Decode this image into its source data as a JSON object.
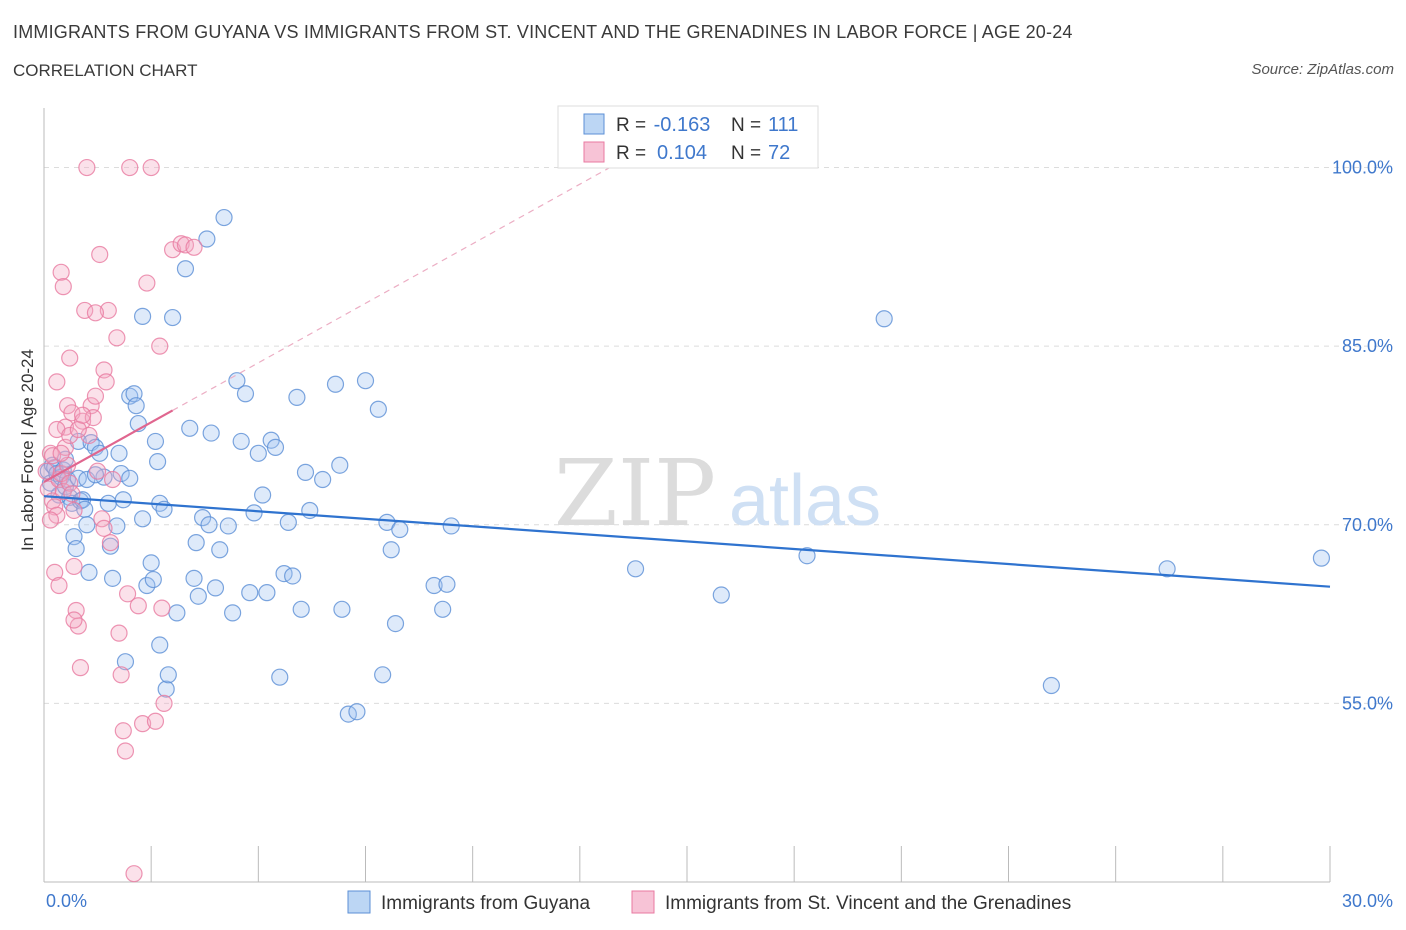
{
  "header": {
    "title": "IMMIGRANTS FROM GUYANA VS IMMIGRANTS FROM ST. VINCENT AND THE GRENADINES IN LABOR FORCE | AGE 20-24",
    "subtitle": "CORRELATION CHART",
    "source": "Source: ZipAtlas.com"
  },
  "watermark": {
    "zip": "ZIP",
    "atlas": "atlas"
  },
  "stats_box": [
    {
      "r_label": "R =",
      "r_value": "-0.163",
      "n_label": "N =",
      "n_value": "111",
      "color": "#5b8fd6"
    },
    {
      "r_label": "R =",
      "r_value": "0.104",
      "n_label": "N =",
      "n_value": "72",
      "color": "#e87aa0"
    }
  ],
  "chart_data": {
    "type": "scatter",
    "ylabel": "In Labor Force | Age 20-24",
    "xlim": [
      0,
      30
    ],
    "ylim": [
      40,
      105
    ],
    "x_tick_labels": [
      {
        "value": 0,
        "label": "0.0%"
      },
      {
        "value": 30,
        "label": "30.0%"
      }
    ],
    "y_tick_labels": [
      {
        "value": 100,
        "label": "100.0%"
      },
      {
        "value": 85,
        "label": "85.0%"
      },
      {
        "value": 70,
        "label": "70.0%"
      },
      {
        "value": 55,
        "label": "55.0%"
      }
    ],
    "grid": true,
    "legend_position": "bottom",
    "series": [
      {
        "name": "Immigrants from Guyana",
        "color": "#5b8fd6",
        "fill": "rgba(160,196,240,0.35)",
        "trend": {
          "x": [
            0,
            30
          ],
          "y": [
            72.4,
            64.8
          ],
          "style": "solid"
        },
        "points": [
          [
            0.1,
            74.5
          ],
          [
            0.15,
            73.5
          ],
          [
            0.2,
            75.0
          ],
          [
            0.25,
            74.8
          ],
          [
            0.3,
            74.3
          ],
          [
            0.35,
            72.5
          ],
          [
            0.4,
            74.0
          ],
          [
            0.45,
            74.6
          ],
          [
            0.5,
            73.2
          ],
          [
            0.55,
            73.8
          ],
          [
            0.6,
            72.3
          ],
          [
            0.65,
            71.8
          ],
          [
            0.7,
            69.0
          ],
          [
            0.75,
            68.0
          ],
          [
            0.8,
            77.0
          ],
          [
            0.85,
            72.0
          ],
          [
            0.9,
            72.1
          ],
          [
            0.95,
            71.3
          ],
          [
            1.0,
            70.0
          ],
          [
            1.05,
            66.0
          ],
          [
            1.1,
            76.9
          ],
          [
            1.2,
            76.5
          ],
          [
            1.3,
            76.0
          ],
          [
            1.4,
            74.0
          ],
          [
            1.5,
            71.8
          ],
          [
            1.55,
            68.2
          ],
          [
            1.6,
            65.5
          ],
          [
            1.7,
            69.9
          ],
          [
            1.75,
            76.0
          ],
          [
            1.8,
            74.3
          ],
          [
            1.85,
            72.1
          ],
          [
            1.9,
            58.5
          ],
          [
            2.0,
            80.8
          ],
          [
            2.1,
            81.0
          ],
          [
            2.15,
            80.0
          ],
          [
            2.2,
            78.5
          ],
          [
            2.3,
            87.5
          ],
          [
            2.4,
            64.9
          ],
          [
            2.5,
            66.8
          ],
          [
            2.55,
            65.4
          ],
          [
            2.6,
            77.0
          ],
          [
            2.65,
            75.3
          ],
          [
            2.7,
            71.8
          ],
          [
            2.8,
            71.3
          ],
          [
            2.85,
            56.2
          ],
          [
            2.9,
            57.4
          ],
          [
            3.0,
            87.4
          ],
          [
            3.1,
            62.6
          ],
          [
            3.3,
            91.5
          ],
          [
            3.4,
            78.1
          ],
          [
            3.5,
            65.5
          ],
          [
            3.55,
            68.5
          ],
          [
            3.6,
            64.0
          ],
          [
            3.7,
            70.6
          ],
          [
            3.8,
            94.0
          ],
          [
            3.85,
            70.0
          ],
          [
            3.9,
            77.7
          ],
          [
            4.0,
            64.7
          ],
          [
            4.1,
            67.9
          ],
          [
            4.2,
            95.8
          ],
          [
            4.3,
            69.9
          ],
          [
            4.4,
            62.6
          ],
          [
            4.5,
            82.1
          ],
          [
            4.6,
            77.0
          ],
          [
            4.7,
            81.0
          ],
          [
            4.8,
            64.3
          ],
          [
            4.9,
            71.0
          ],
          [
            5.0,
            76.0
          ],
          [
            5.1,
            72.5
          ],
          [
            5.2,
            64.3
          ],
          [
            5.3,
            77.1
          ],
          [
            5.4,
            76.5
          ],
          [
            5.5,
            57.2
          ],
          [
            5.6,
            65.9
          ],
          [
            5.7,
            70.2
          ],
          [
            5.8,
            65.7
          ],
          [
            5.9,
            80.7
          ],
          [
            6.0,
            62.9
          ],
          [
            6.1,
            74.4
          ],
          [
            6.2,
            71.2
          ],
          [
            6.5,
            73.8
          ],
          [
            6.8,
            81.8
          ],
          [
            6.9,
            75.0
          ],
          [
            6.95,
            62.9
          ],
          [
            7.1,
            54.1
          ],
          [
            7.3,
            54.3
          ],
          [
            7.5,
            82.1
          ],
          [
            7.8,
            79.7
          ],
          [
            7.9,
            57.4
          ],
          [
            8.0,
            70.2
          ],
          [
            8.1,
            67.9
          ],
          [
            8.2,
            61.7
          ],
          [
            8.3,
            69.6
          ],
          [
            9.1,
            64.9
          ],
          [
            9.3,
            62.9
          ],
          [
            9.4,
            65.0
          ],
          [
            9.5,
            69.9
          ],
          [
            13.8,
            66.3
          ],
          [
            15.8,
            64.1
          ],
          [
            17.8,
            67.4
          ],
          [
            19.6,
            87.3
          ],
          [
            23.5,
            56.5
          ],
          [
            26.2,
            66.3
          ],
          [
            29.8,
            67.2
          ],
          [
            0.5,
            75.5
          ],
          [
            0.8,
            73.9
          ],
          [
            1.0,
            73.8
          ],
          [
            1.2,
            74.2
          ],
          [
            2.0,
            73.9
          ],
          [
            2.3,
            70.5
          ],
          [
            2.7,
            59.9
          ]
        ]
      },
      {
        "name": "Immigrants from St. Vincent and the Grenadines",
        "color": "#e87aa0",
        "fill": "rgba(244,170,196,0.35)",
        "trend": {
          "x": [
            0,
            3.0
          ],
          "y": [
            73.6,
            79.6
          ],
          "style": "solid",
          "dash_extension_x": [
            3.0,
            15.0
          ],
          "dash_extension_y": [
            79.6,
            103.6
          ]
        },
        "points": [
          [
            0.05,
            74.5
          ],
          [
            0.1,
            73.0
          ],
          [
            0.15,
            76.0
          ],
          [
            0.2,
            72.0
          ],
          [
            0.25,
            71.5
          ],
          [
            0.3,
            70.8
          ],
          [
            0.35,
            73.8
          ],
          [
            0.4,
            74.3
          ],
          [
            0.45,
            72.8
          ],
          [
            0.5,
            76.5
          ],
          [
            0.55,
            75.0
          ],
          [
            0.6,
            73.5
          ],
          [
            0.65,
            72.6
          ],
          [
            0.7,
            71.2
          ],
          [
            0.2,
            75.8
          ],
          [
            0.25,
            66.0
          ],
          [
            0.3,
            82.0
          ],
          [
            0.35,
            64.9
          ],
          [
            0.4,
            91.2
          ],
          [
            0.45,
            90.0
          ],
          [
            0.5,
            78.2
          ],
          [
            0.55,
            80.0
          ],
          [
            0.6,
            84.0
          ],
          [
            0.65,
            79.4
          ],
          [
            0.7,
            66.5
          ],
          [
            0.75,
            62.8
          ],
          [
            0.8,
            61.5
          ],
          [
            0.85,
            58.0
          ],
          [
            0.9,
            78.7
          ],
          [
            0.95,
            88.0
          ],
          [
            1.0,
            100.0
          ],
          [
            1.05,
            77.5
          ],
          [
            1.1,
            80.0
          ],
          [
            1.15,
            79.0
          ],
          [
            1.2,
            80.8
          ],
          [
            1.25,
            74.5
          ],
          [
            1.3,
            92.7
          ],
          [
            1.35,
            70.5
          ],
          [
            1.4,
            83.0
          ],
          [
            1.45,
            82.0
          ],
          [
            1.5,
            88.0
          ],
          [
            1.55,
            68.5
          ],
          [
            1.6,
            73.8
          ],
          [
            1.7,
            85.7
          ],
          [
            1.75,
            60.9
          ],
          [
            1.8,
            57.4
          ],
          [
            1.85,
            52.7
          ],
          [
            1.9,
            51.0
          ],
          [
            1.95,
            64.2
          ],
          [
            2.0,
            100.0
          ],
          [
            2.1,
            40.7
          ],
          [
            2.2,
            63.2
          ],
          [
            2.3,
            53.3
          ],
          [
            2.4,
            90.3
          ],
          [
            2.5,
            100.0
          ],
          [
            2.6,
            53.5
          ],
          [
            2.7,
            85.0
          ],
          [
            2.75,
            63.0
          ],
          [
            2.8,
            55.0
          ],
          [
            3.0,
            93.1
          ],
          [
            3.2,
            93.6
          ],
          [
            3.3,
            93.5
          ],
          [
            3.5,
            93.3
          ],
          [
            0.3,
            78.0
          ],
          [
            0.4,
            76.0
          ],
          [
            0.6,
            77.5
          ],
          [
            0.8,
            78.0
          ],
          [
            0.9,
            79.2
          ],
          [
            1.2,
            87.8
          ],
          [
            1.4,
            69.7
          ],
          [
            0.15,
            70.4
          ],
          [
            0.7,
            62.0
          ]
        ]
      }
    ]
  }
}
